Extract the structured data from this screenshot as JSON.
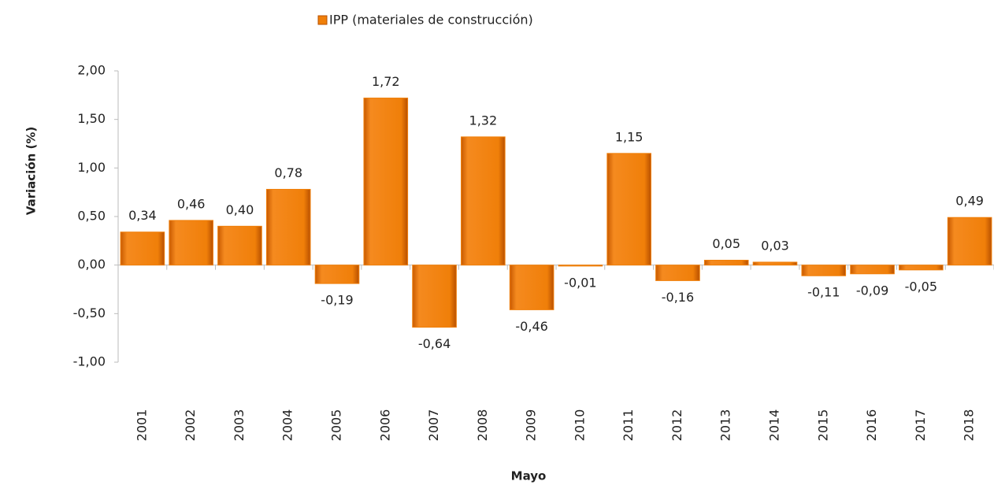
{
  "chart_data": {
    "type": "bar",
    "legend": "IPP (materiales de construcción)",
    "y_label": "Variación (%)",
    "x_label": "Mayo",
    "color": "#f07f09",
    "categories": [
      "2001",
      "2002",
      "2003",
      "2004",
      "2005",
      "2006",
      "2007",
      "2008",
      "2009",
      "2010",
      "2011",
      "2012",
      "2013",
      "2014",
      "2015",
      "2016",
      "2017",
      "2018"
    ],
    "values": [
      0.34,
      0.46,
      0.4,
      0.78,
      -0.19,
      1.72,
      -0.64,
      1.32,
      -0.46,
      -0.01,
      1.15,
      -0.16,
      0.05,
      0.03,
      -0.11,
      -0.09,
      -0.05,
      0.49
    ],
    "value_labels": [
      "0,34",
      "0,46",
      "0,40",
      "0,78",
      "-0,19",
      "1,72",
      "-0,64",
      "1,32",
      "-0,46",
      "-0,01",
      "1,15",
      "-0,16",
      "0,05",
      "0,03",
      "-0,11",
      "-0,09",
      "-0,05",
      "0,49"
    ],
    "ylim": [
      -1,
      2
    ],
    "yticks": [
      {
        "value": -1,
        "label": "-1,00"
      },
      {
        "value": -0.5,
        "label": "-0,50"
      },
      {
        "value": 0,
        "label": "0,00"
      },
      {
        "value": 0.5,
        "label": "0,50"
      },
      {
        "value": 1,
        "label": "1,00"
      },
      {
        "value": 1.5,
        "label": "1,50"
      },
      {
        "value": 2,
        "label": "2,00"
      }
    ],
    "grid": false
  }
}
